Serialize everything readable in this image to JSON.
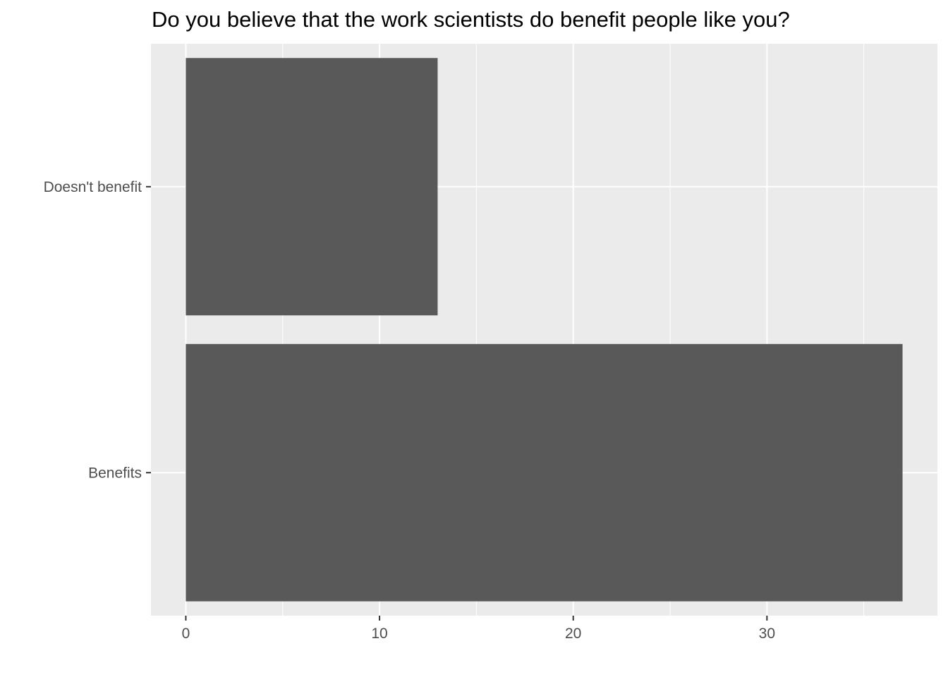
{
  "chart_data": {
    "type": "bar",
    "orientation": "horizontal",
    "title": "Do you believe that the work scientists do benefit people like you?",
    "xlabel": "",
    "ylabel": "",
    "categories": [
      "Benefits",
      "Doesn't benefit"
    ],
    "values": [
      37,
      13
    ],
    "xlim": [
      -1.8,
      38.8
    ],
    "x_ticks": [
      0,
      10,
      20,
      30
    ],
    "x_tick_labels": [
      "0",
      "10",
      "20",
      "30"
    ],
    "grid": true,
    "legend": "none",
    "colors": {
      "bar": "#595959",
      "panel": "#ebebeb",
      "grid": "#ffffff",
      "tick_text": "#4d4d4d",
      "title_text": "#000000"
    }
  }
}
